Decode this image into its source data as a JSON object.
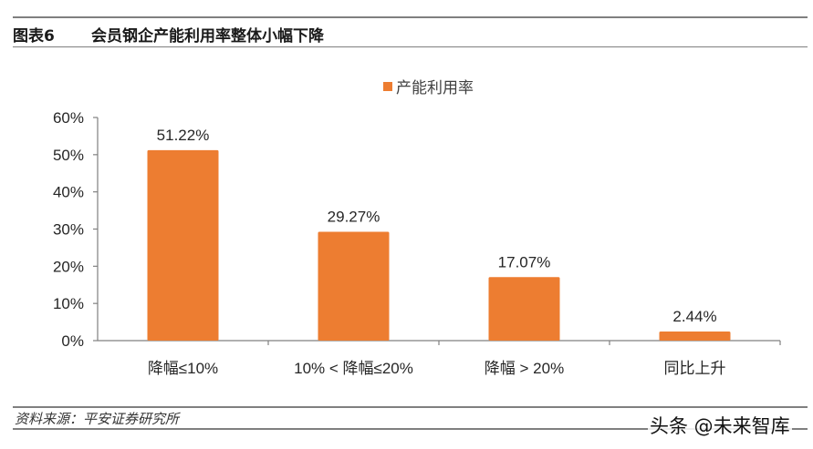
{
  "header": {
    "figure_number": "图表6",
    "title": "会员钢企产能利用率整体小幅下降"
  },
  "legend": {
    "label": "产能利用率",
    "color": "#ED7D31"
  },
  "footer": {
    "source": "资料来源：平安证券研究所",
    "watermark": "头条 @未来智库"
  },
  "chart_data": {
    "type": "bar",
    "title": "会员钢企产能利用率整体小幅下降",
    "xlabel": "",
    "ylabel": "",
    "categories": [
      "降幅≤10%",
      "10% < 降幅≤20%",
      "降幅 > 20%",
      "同比上升"
    ],
    "series": [
      {
        "name": "产能利用率",
        "values": [
          51.22,
          29.27,
          17.07,
          2.44
        ],
        "color": "#ED7D31"
      }
    ],
    "data_labels": [
      "51.22%",
      "29.27%",
      "17.07%",
      "2.44%"
    ],
    "yticks": [
      "0%",
      "10%",
      "20%",
      "30%",
      "40%",
      "50%",
      "60%"
    ],
    "ylim": [
      0,
      60
    ],
    "grid": false,
    "legend_position": "top"
  }
}
